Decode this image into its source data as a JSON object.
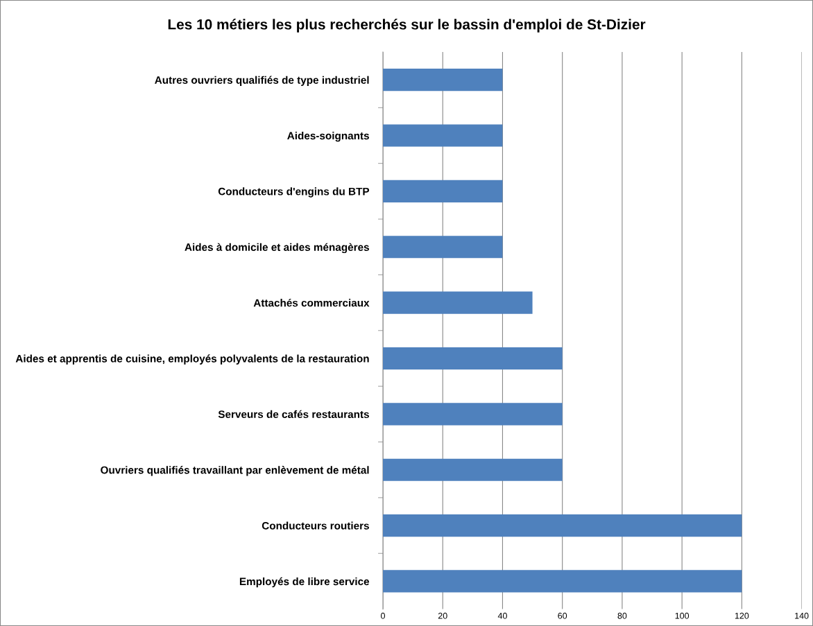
{
  "chart_data": {
    "type": "bar",
    "orientation": "horizontal",
    "title": "Les 10 métiers les plus recherchés sur le bassin d'emploi de St-Dizier",
    "categories": [
      "Autres ouvriers qualifiés de type industriel",
      "Aides-soignants",
      "Conducteurs d'engins du BTP",
      "Aides à domicile et aides ménagères",
      "Attachés commerciaux",
      "Aides et apprentis de cuisine, employés polyvalents de la restauration",
      "Serveurs de cafés restaurants",
      "Ouvriers qualifiés travaillant par enlèvement de métal",
      "Conducteurs routiers",
      "Employés de libre service"
    ],
    "values": [
      40,
      40,
      40,
      40,
      50,
      60,
      60,
      60,
      120,
      120
    ],
    "color": "#4f81bd",
    "xlim": [
      0,
      140
    ],
    "xticks": [
      0,
      20,
      40,
      60,
      80,
      100,
      120,
      140
    ],
    "grid": "x",
    "legend": false
  }
}
